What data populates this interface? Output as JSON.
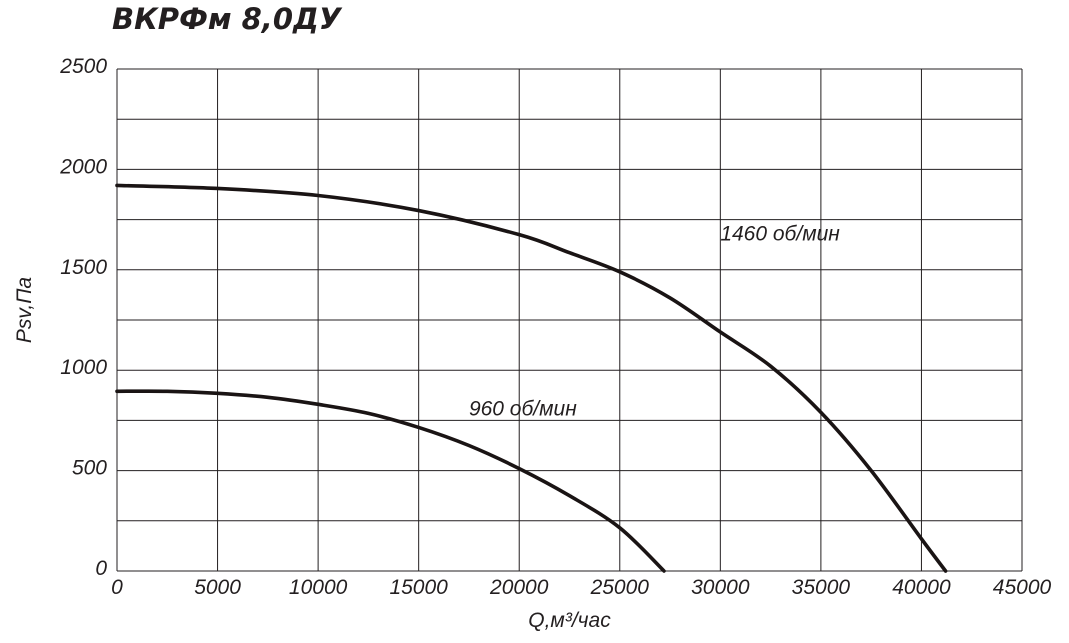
{
  "chart_data": {
    "type": "line",
    "title": "ВКРФм 8,0ДУ",
    "xlabel": "Q,м³/час",
    "ylabel": "Psv,Па",
    "xlim": [
      0,
      45000
    ],
    "ylim": [
      0,
      2500
    ],
    "x_ticks": [
      0,
      5000,
      10000,
      15000,
      20000,
      25000,
      30000,
      35000,
      40000,
      45000
    ],
    "y_ticks": [
      0,
      500,
      1000,
      1500,
      2000,
      2500
    ],
    "x_tick_labels": [
      "0",
      "5000",
      "10000",
      "15000",
      "20000",
      "25000",
      "30000",
      "35000",
      "40000",
      "45000"
    ],
    "y_tick_labels": [
      "0",
      "500",
      "1000",
      "1500",
      "2000",
      "2500"
    ],
    "x_grid_step": 5000,
    "y_grid_step": 250,
    "grid": true,
    "series": [
      {
        "name": "1460 об/мин",
        "color": "#1a1414",
        "x": [
          0,
          5000,
          10000,
          15000,
          20000,
          22500,
          25000,
          27500,
          30000,
          32500,
          35000,
          37500,
          40000,
          41200
        ],
        "y": [
          1920,
          1905,
          1870,
          1795,
          1675,
          1585,
          1490,
          1360,
          1190,
          1020,
          790,
          500,
          160,
          0
        ]
      },
      {
        "name": "960 об/мин",
        "color": "#1a1414",
        "x": [
          0,
          2500,
          5000,
          7500,
          10000,
          12500,
          15000,
          17500,
          20000,
          22500,
          25000,
          27200
        ],
        "y": [
          895,
          895,
          885,
          865,
          830,
          785,
          715,
          625,
          510,
          375,
          215,
          0
        ]
      }
    ],
    "annotations": [
      {
        "text": "1460 об/мин",
        "x": 30000,
        "y": 1645
      },
      {
        "text": "960 об/мин",
        "x": 17500,
        "y": 775
      }
    ]
  }
}
